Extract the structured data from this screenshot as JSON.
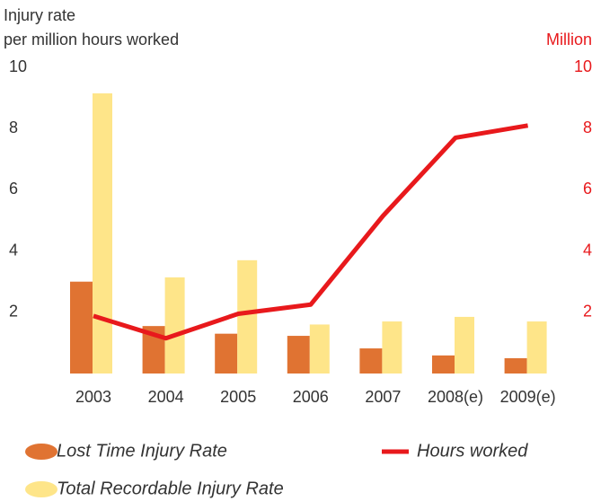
{
  "chart_data": {
    "type": "bar",
    "y_label_line1": "Injury rate",
    "y_label_line2": "per million hours worked",
    "y2_label": "Million",
    "categories": [
      "2003",
      "2004",
      "2005",
      "2006",
      "2007",
      "2008(e)",
      "2009(e)"
    ],
    "series": [
      {
        "name": "Lost Time Injury Rate",
        "color": "#e07332",
        "type": "bar",
        "values": [
          3.0,
          1.55,
          1.3,
          1.23,
          0.82,
          0.59,
          0.5
        ]
      },
      {
        "name": "Total Recordable Injury Rate",
        "color": "#fee589",
        "type": "bar",
        "values": [
          9.15,
          3.14,
          3.7,
          1.6,
          1.7,
          1.85,
          1.7
        ]
      },
      {
        "name": "Hours worked",
        "color": "#e8191c",
        "type": "line",
        "axis": "y2",
        "values": [
          1.88,
          1.15,
          1.95,
          2.25,
          5.15,
          7.7,
          8.1
        ]
      }
    ],
    "ylim": [
      0,
      10
    ],
    "yticks": [
      2,
      4,
      6,
      8,
      10
    ],
    "y2lim": [
      0,
      10
    ],
    "y2ticks": [
      2,
      4,
      6,
      8,
      10
    ],
    "y2_color": "#e8191c",
    "grid": false
  }
}
